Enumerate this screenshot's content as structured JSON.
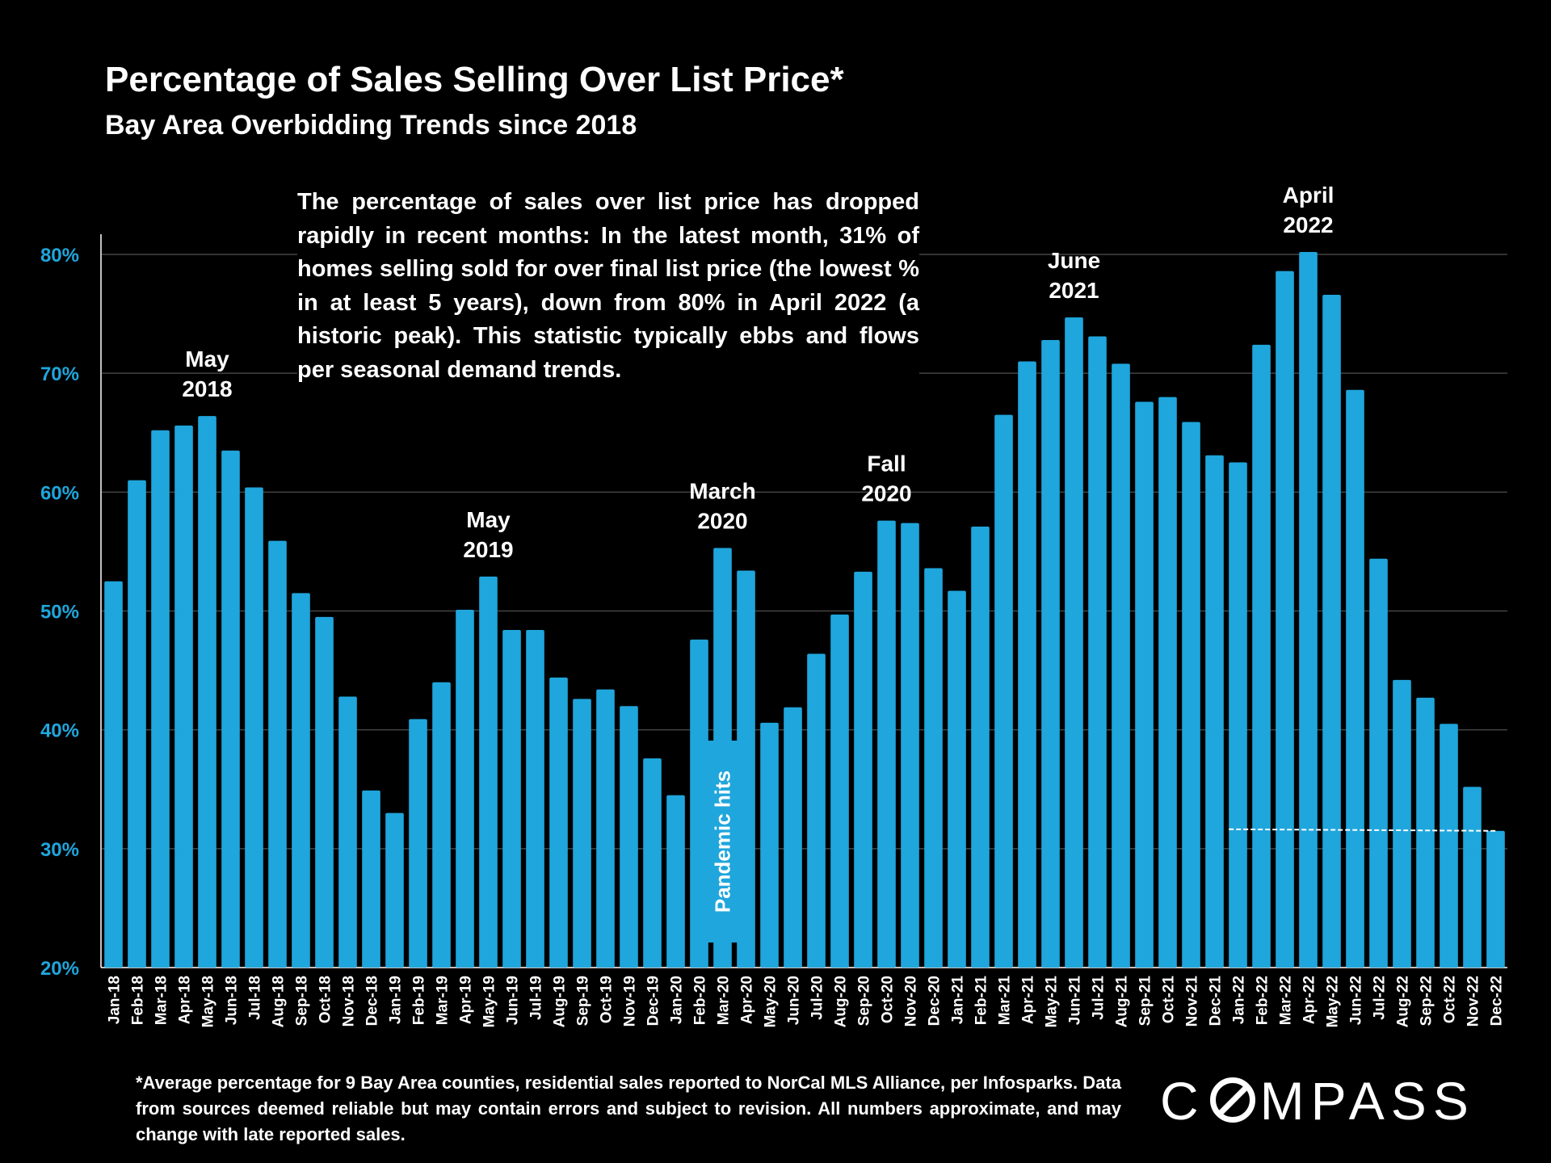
{
  "header": {
    "title": "Percentage of Sales Selling Over List Price*",
    "subtitle": "Bay Area Overbidding Trends since 2018"
  },
  "callout": "The percentage of sales over list price has dropped rapidly in recent months: In the latest month, 31% of homes selling sold for over final list price (the lowest % in at least 5 years), down from 80% in April 2022 (a historic peak). This statistic typically ebbs and flows per seasonal demand trends.",
  "footnote": "*Average percentage for 9 Bay Area counties, residential sales reported to NorCal MLS Alliance, per Infosparks. Data from sources deemed reliable but may contain errors and subject to revision. All numbers approximate, and may change with late reported sales.",
  "logo": {
    "pre": "C",
    "post": "MPASS"
  },
  "colors": {
    "bar": "#1fa6dc",
    "grid": "#444444",
    "tick": "#1fa6dc"
  },
  "chart_data": {
    "type": "bar",
    "title": "Percentage of Sales Selling Over List Price*",
    "ylim": [
      20,
      82
    ],
    "yticks": [
      20,
      30,
      40,
      50,
      60,
      70,
      80
    ],
    "ytick_labels": [
      "20%",
      "30%",
      "40%",
      "50%",
      "60%",
      "70%",
      "80%"
    ],
    "categories": [
      "Jan-18",
      "Feb-18",
      "Mar-18",
      "Apr-18",
      "May-18",
      "Jun-18",
      "Jul-18",
      "Aug-18",
      "Sep-18",
      "Oct-18",
      "Nov-18",
      "Dec-18",
      "Jan-19",
      "Feb-19",
      "Mar-19",
      "Apr-19",
      "May-19",
      "Jun-19",
      "Jul-19",
      "Aug-19",
      "Sep-19",
      "Oct-19",
      "Nov-19",
      "Dec-19",
      "Jan-20",
      "Feb-20",
      "Mar-20",
      "Apr-20",
      "May-20",
      "Jun-20",
      "Jul-20",
      "Aug-20",
      "Sep-20",
      "Oct-20",
      "Nov-20",
      "Dec-20",
      "Jan-21",
      "Feb-21",
      "Mar-21",
      "Apr-21",
      "May-21",
      "Jun-21",
      "Jul-21",
      "Aug-21",
      "Sep-21",
      "Oct-21",
      "Nov-21",
      "Dec-21",
      "Jan-22",
      "Feb-22",
      "Mar-22",
      "Apr-22",
      "May-22",
      "Jun-22",
      "Jul-22",
      "Aug-22",
      "Sep-22",
      "Oct-22",
      "Nov-22",
      "Dec-22"
    ],
    "values": [
      52.5,
      61.0,
      65.2,
      65.6,
      66.4,
      63.5,
      60.4,
      55.9,
      51.5,
      49.5,
      42.8,
      34.9,
      33.0,
      40.9,
      44.0,
      50.1,
      52.9,
      48.4,
      48.4,
      44.4,
      42.6,
      43.4,
      42.0,
      37.6,
      34.5,
      47.6,
      55.3,
      53.4,
      40.6,
      41.9,
      46.4,
      49.7,
      53.3,
      57.6,
      57.4,
      53.6,
      51.7,
      57.1,
      66.5,
      71.0,
      72.8,
      74.7,
      73.1,
      70.8,
      67.6,
      68.0,
      65.9,
      63.1,
      62.5,
      72.4,
      78.6,
      80.2,
      76.6,
      68.6,
      54.4,
      44.2,
      42.7,
      40.5,
      35.2,
      31.5
    ],
    "annotations": [
      {
        "lines": [
          "May",
          "2018"
        ],
        "index": 4
      },
      {
        "lines": [
          "May",
          "2019"
        ],
        "index": 16
      },
      {
        "lines": [
          "March",
          "2020"
        ],
        "index": 26
      },
      {
        "lines": [
          "Fall",
          "2020"
        ],
        "index": 33
      },
      {
        "lines": [
          "June",
          "2021"
        ],
        "index": 41
      },
      {
        "lines": [
          "April",
          "2022"
        ],
        "index": 51
      }
    ],
    "vertical_label": "Pandemic hits",
    "reference_line": {
      "from_index": 48,
      "to_index": 59,
      "value": 31.5
    }
  }
}
